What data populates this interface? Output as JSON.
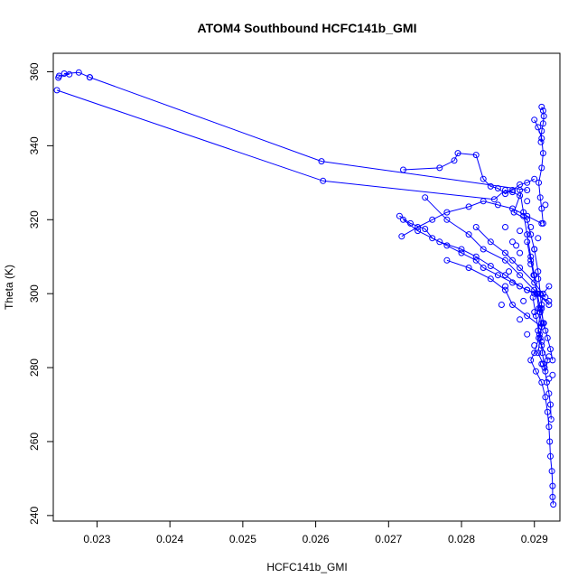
{
  "chart_data": {
    "type": "line",
    "title": "ATOM4 Southbound HCFC141b_GMI",
    "xlabel": "HCFC141b_GMI",
    "ylabel": "Theta (K)",
    "xlim": [
      0.0224,
      0.02935
    ],
    "ylim": [
      238.5,
      365.0
    ],
    "xticks": [
      0.023,
      0.024,
      0.025,
      0.026,
      0.027,
      0.028,
      0.029
    ],
    "xtick_labels": [
      "0.023",
      "0.024",
      "0.025",
      "0.026",
      "0.027",
      "0.028",
      "0.029"
    ],
    "yticks": [
      240,
      260,
      280,
      300,
      320,
      340,
      360
    ],
    "ytick_labels": [
      "240",
      "260",
      "280",
      "300",
      "320",
      "340",
      "360"
    ],
    "grid": false,
    "series_color": "#0000ff",
    "marker": "open-circle",
    "series": [
      {
        "x": [
          0.02245,
          0.0261,
          0.02845,
          0.0286,
          0.0287,
          0.0288,
          0.02872,
          0.0289,
          0.02895,
          0.029,
          0.02905,
          0.02908,
          0.0291,
          0.02912,
          0.02906,
          0.029,
          0.02895,
          0.02902,
          0.0291,
          0.02915,
          0.02918,
          0.0292,
          0.02921,
          0.02922,
          0.02924,
          0.02925,
          0.02925,
          0.02926
        ],
        "y": [
          355.0,
          330.5,
          325.5,
          328.0,
          327.5,
          326.5,
          322.0,
          320.0,
          316.0,
          312.0,
          306.0,
          300.0,
          296.0,
          292.0,
          288.0,
          284.0,
          282.0,
          279.0,
          276.0,
          272.0,
          268.0,
          264.0,
          260.0,
          256.0,
          252.0,
          248.0,
          245.0,
          243.0
        ]
      },
      {
        "x": [
          0.0229,
          0.02275,
          0.02255,
          0.02262,
          0.02248,
          0.02247
        ],
        "y": [
          358.5,
          359.8,
          359.5,
          359.3,
          358.9,
          358.4
        ]
      },
      {
        "x": [
          0.0229,
          0.02608,
          0.0289
        ],
        "y": [
          358.5,
          335.8,
          328.0
        ]
      },
      {
        "x": [
          0.0272,
          0.0277,
          0.0279,
          0.02795,
          0.0282,
          0.0283,
          0.0284,
          0.0285,
          0.0286,
          0.0287,
          0.0288,
          0.0289,
          0.029
        ],
        "y": [
          333.5,
          334.0,
          336.0,
          338.0,
          337.5,
          331.0,
          329.0,
          328.5,
          327.0,
          328.0,
          329.5,
          330.0,
          331.0
        ]
      },
      {
        "x": [
          0.02715,
          0.0273,
          0.0275,
          0.0276,
          0.0278,
          0.028,
          0.0282,
          0.0283,
          0.0285,
          0.0287,
          0.0289,
          0.02905
        ],
        "y": [
          321.0,
          319.0,
          317.5,
          315.0,
          313.0,
          311.0,
          309.0,
          307.0,
          305.0,
          303.0,
          301.0,
          300.0
        ]
      },
      {
        "x": [
          0.02718,
          0.0274,
          0.0276,
          0.0278,
          0.0281,
          0.0283,
          0.0285,
          0.0287,
          0.0289,
          0.0291
        ],
        "y": [
          315.5,
          318.0,
          320.0,
          322.0,
          323.5,
          325.0,
          324.0,
          323.0,
          321.0,
          319.0
        ]
      },
      {
        "x": [
          0.0272,
          0.0274,
          0.0277,
          0.028,
          0.0282,
          0.0284,
          0.0286,
          0.0288,
          0.029,
          0.0292
        ],
        "y": [
          320.0,
          317.0,
          314.0,
          312.0,
          310.0,
          307.5,
          305.0,
          302.0,
          300.0,
          298.0
        ]
      },
      {
        "x": [
          0.0278,
          0.0281,
          0.0284,
          0.0286,
          0.0287,
          0.0289,
          0.0291
        ],
        "y": [
          309.0,
          307.0,
          304.0,
          301.0,
          297.0,
          294.0,
          291.0
        ]
      },
      {
        "x": [
          0.0275,
          0.0278,
          0.0281,
          0.0283,
          0.0286,
          0.0288,
          0.029,
          0.0292
        ],
        "y": [
          326.0,
          320.0,
          316.0,
          312.0,
          309.0,
          305.0,
          301.0,
          297.0
        ]
      },
      {
        "x": [
          0.0282,
          0.0284,
          0.0286,
          0.0288,
          0.029,
          0.02915
        ],
        "y": [
          318.0,
          314.0,
          311.0,
          307.0,
          303.0,
          299.0
        ]
      },
      {
        "x": [
          0.0288,
          0.02885,
          0.0289,
          0.02895,
          0.029,
          0.02903,
          0.02906,
          0.0291,
          0.02908,
          0.02905,
          0.02912,
          0.02915,
          0.02918,
          0.0291,
          0.02905,
          0.02908,
          0.02912,
          0.0292
        ],
        "y": [
          328.0,
          322.0,
          316.0,
          310.0,
          305.0,
          300.0,
          296.0,
          292.0,
          288.0,
          284.0,
          281.0,
          279.0,
          282.0,
          286.0,
          290.0,
          295.0,
          300.0,
          302.0
        ]
      },
      {
        "x": [
          0.029,
          0.02905,
          0.0291,
          0.02912,
          0.0291,
          0.02906,
          0.02908,
          0.0291,
          0.02912
        ],
        "y": [
          347.0,
          345.0,
          342.0,
          338.0,
          334.0,
          330.0,
          326.0,
          323.0,
          319.0
        ]
      },
      {
        "x": [
          0.0291,
          0.02912,
          0.02913,
          0.02912,
          0.0291,
          0.02909
        ],
        "y": [
          350.5,
          349.5,
          348.0,
          346.0,
          344.0,
          341.0
        ]
      },
      {
        "x": [
          0.02898,
          0.02902,
          0.02907,
          0.02911,
          0.02914,
          0.02917,
          0.0292,
          0.02922,
          0.02923
        ],
        "y": [
          299.0,
          294.0,
          289.0,
          284.0,
          280.0,
          276.0,
          273.0,
          270.0,
          266.0
        ]
      },
      {
        "x": [
          0.0289,
          0.02895,
          0.02899,
          0.02904,
          0.02908,
          0.02913,
          0.02918,
          0.02922,
          0.02925
        ],
        "y": [
          314.0,
          309.0,
          305.0,
          300.0,
          296.0,
          292.0,
          288.0,
          285.0,
          282.0
        ]
      }
    ],
    "scatter_points": {
      "x": [
        0.02855,
        0.0286,
        0.02865,
        0.0287,
        0.02875,
        0.0288,
        0.02885,
        0.0289,
        0.02895,
        0.029,
        0.02905,
        0.0291,
        0.02915,
        0.0292,
        0.02925,
        0.0288,
        0.0289,
        0.029,
        0.0291,
        0.0292,
        0.02885,
        0.02895,
        0.02905,
        0.02915,
        0.0286,
        0.0287,
        0.0288,
        0.0289,
        0.029,
        0.0291
      ],
      "y": [
        297.0,
        302.0,
        306.0,
        309.0,
        313.0,
        317.0,
        321.0,
        325.0,
        318.0,
        312.0,
        304.0,
        297.0,
        290.0,
        283.0,
        278.0,
        293.0,
        289.0,
        286.0,
        281.0,
        277.0,
        298.0,
        308.0,
        315.0,
        324.0,
        318.0,
        314.0,
        311.0,
        301.0,
        295.0,
        287.0
      ]
    }
  }
}
